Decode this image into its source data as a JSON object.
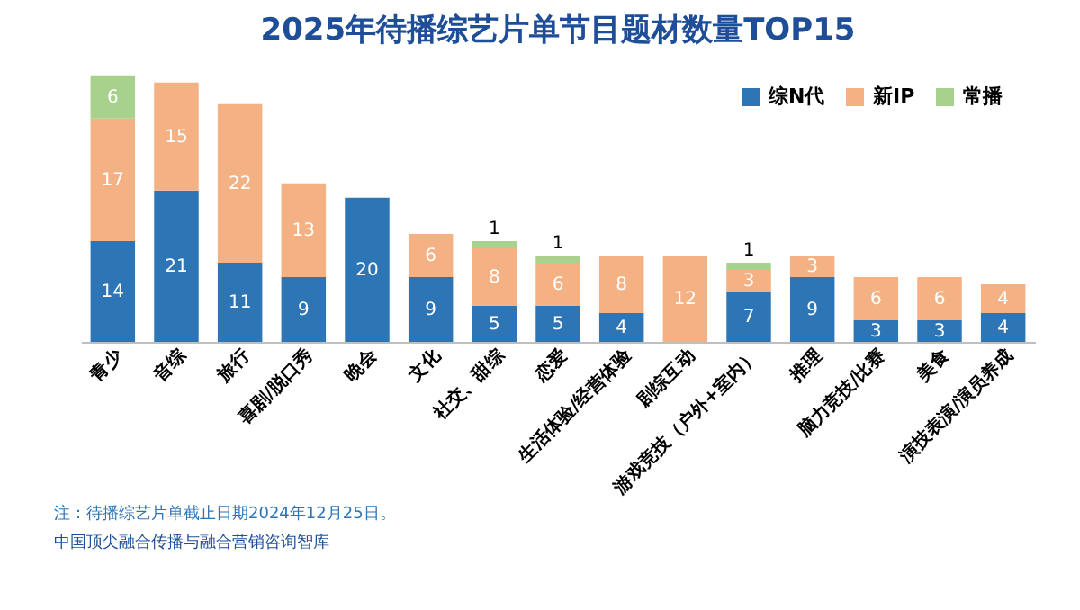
{
  "chart_data": {
    "type": "bar",
    "title": "2025年待播综艺片单节目题材数量TOP15",
    "stacked": true,
    "data_labels": true,
    "legend": "top right",
    "categories": [
      "青少",
      "音综",
      "旅行",
      "喜剧/脱口秀",
      "晚会",
      "文化",
      "社交、甜综",
      "恋爱",
      "生活体验/经营体验",
      "剧综互动",
      "游戏竞技（户外+室内）",
      "推理",
      "脑力竞技/比赛",
      "美食",
      "演技表演/演员养成"
    ],
    "series": [
      {
        "name": "综N代",
        "color": "#2e75b6",
        "values": [
          14,
          21,
          11,
          9,
          20,
          9,
          5,
          5,
          4,
          null,
          7,
          9,
          3,
          3,
          4
        ]
      },
      {
        "name": "新IP",
        "color": "#f4b183",
        "values": [
          17,
          15,
          22,
          13,
          null,
          6,
          8,
          6,
          8,
          12,
          3,
          3,
          6,
          6,
          4
        ]
      },
      {
        "name": "常播",
        "color": "#a9d18e",
        "values": [
          6,
          null,
          null,
          null,
          null,
          null,
          1,
          1,
          null,
          null,
          1,
          null,
          null,
          null,
          null
        ]
      }
    ],
    "annotations": [
      "注：待播综艺片单截止日期2024年12月25日。",
      "中国顶尖融合传播与融合营销咨询智库"
    ]
  }
}
